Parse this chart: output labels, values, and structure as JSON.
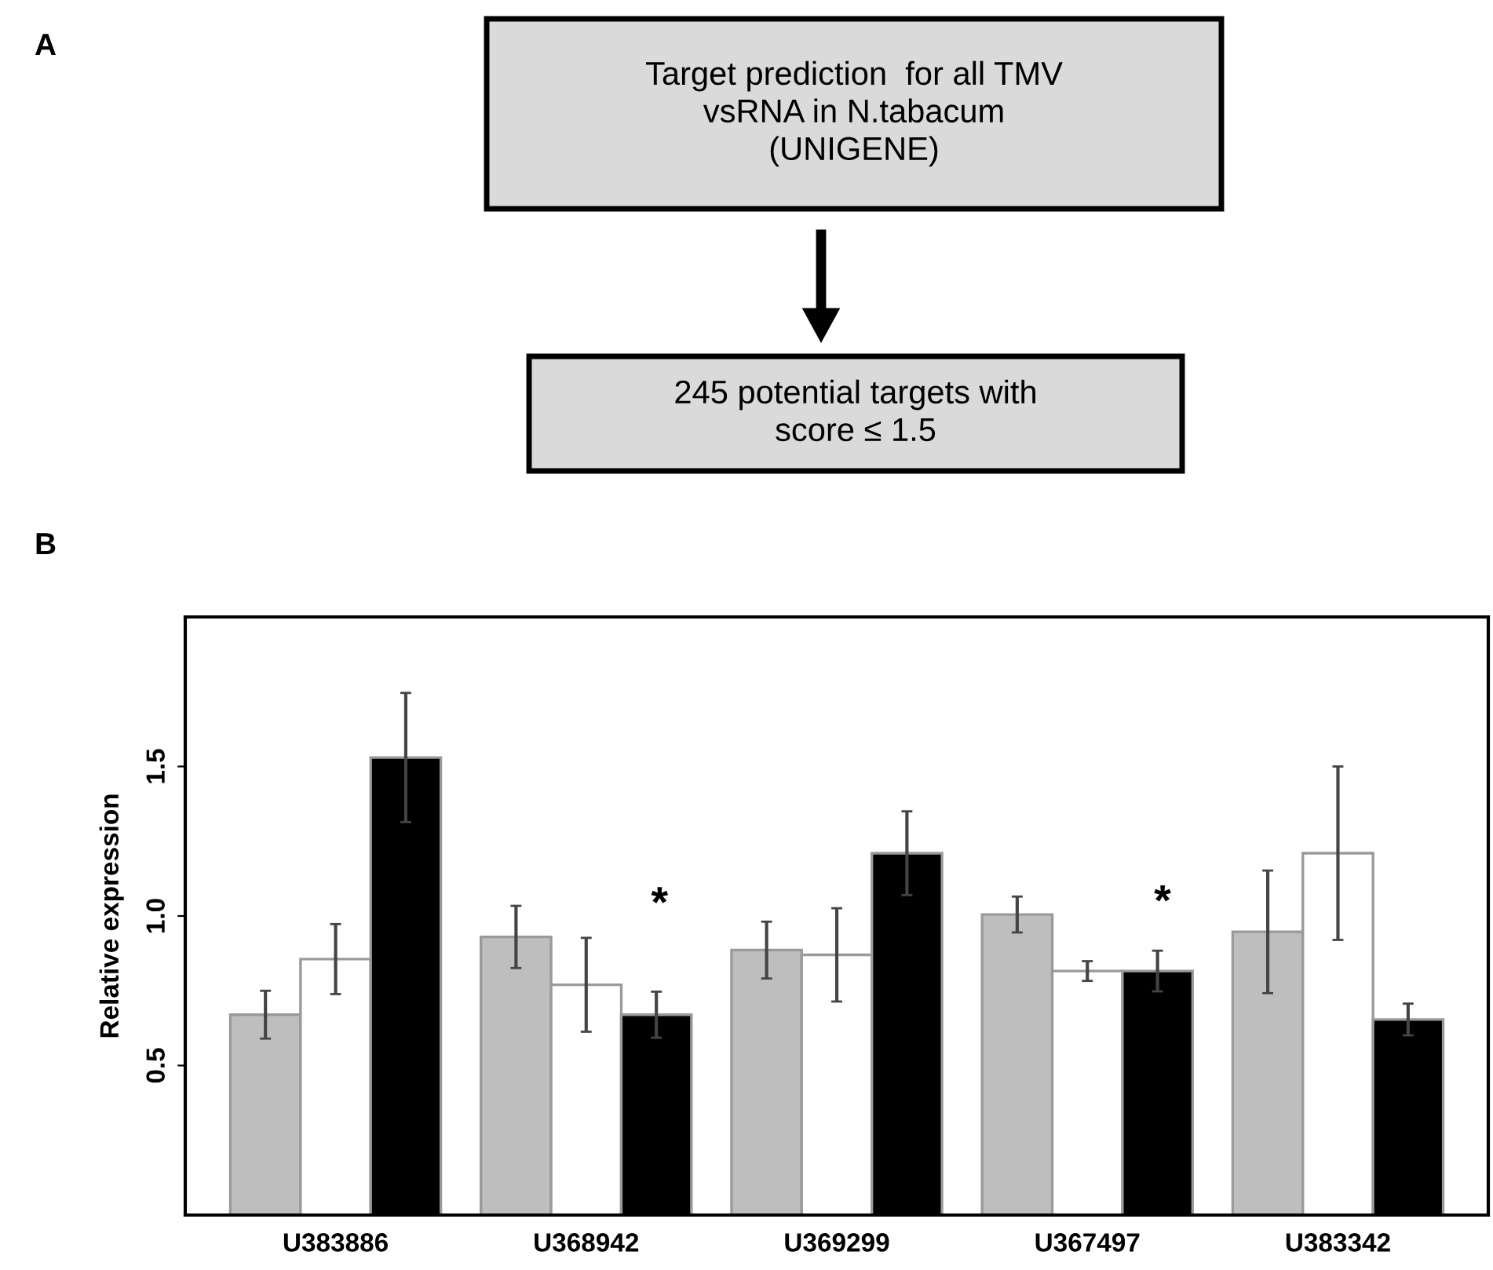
{
  "chart_data": [
    {
      "type": "other",
      "title": "A",
      "annotations": [
        "Target prediction  for all TMV\nvsRNA in N.tabacum\n(UNIGENE)",
        "245 potential targets with\nscore ≤ 1.5"
      ]
    },
    {
      "type": "bar",
      "title": "B",
      "ylabel": "Relative expression",
      "categories": [
        "U383886",
        "U368942",
        "U369299",
        "U367497",
        "U383342"
      ],
      "series": [
        {
          "color": "#bebebe",
          "values": [
            0.67,
            0.93,
            0.886,
            1.005,
            0.947
          ],
          "errors": [
            0.08,
            0.104,
            0.095,
            0.06,
            0.205
          ]
        },
        {
          "color": "#ffffff",
          "values": [
            0.856,
            0.77,
            0.87,
            0.816,
            1.21
          ],
          "errors": [
            0.117,
            0.157,
            0.156,
            0.033,
            0.29
          ]
        },
        {
          "color": "#000000",
          "values": [
            1.53,
            0.67,
            1.21,
            0.816,
            0.654
          ],
          "errors": [
            0.216,
            0.077,
            0.14,
            0.068,
            0.053
          ]
        }
      ],
      "ylim": [
        0,
        2
      ],
      "yticks": [
        {
          "value": 0.5,
          "label": "0.5"
        },
        {
          "value": 1,
          "label": "1.0"
        },
        {
          "value": 1.5,
          "label": "1.5"
        }
      ],
      "grid": false,
      "annotations": [
        "*",
        "*"
      ]
    }
  ]
}
